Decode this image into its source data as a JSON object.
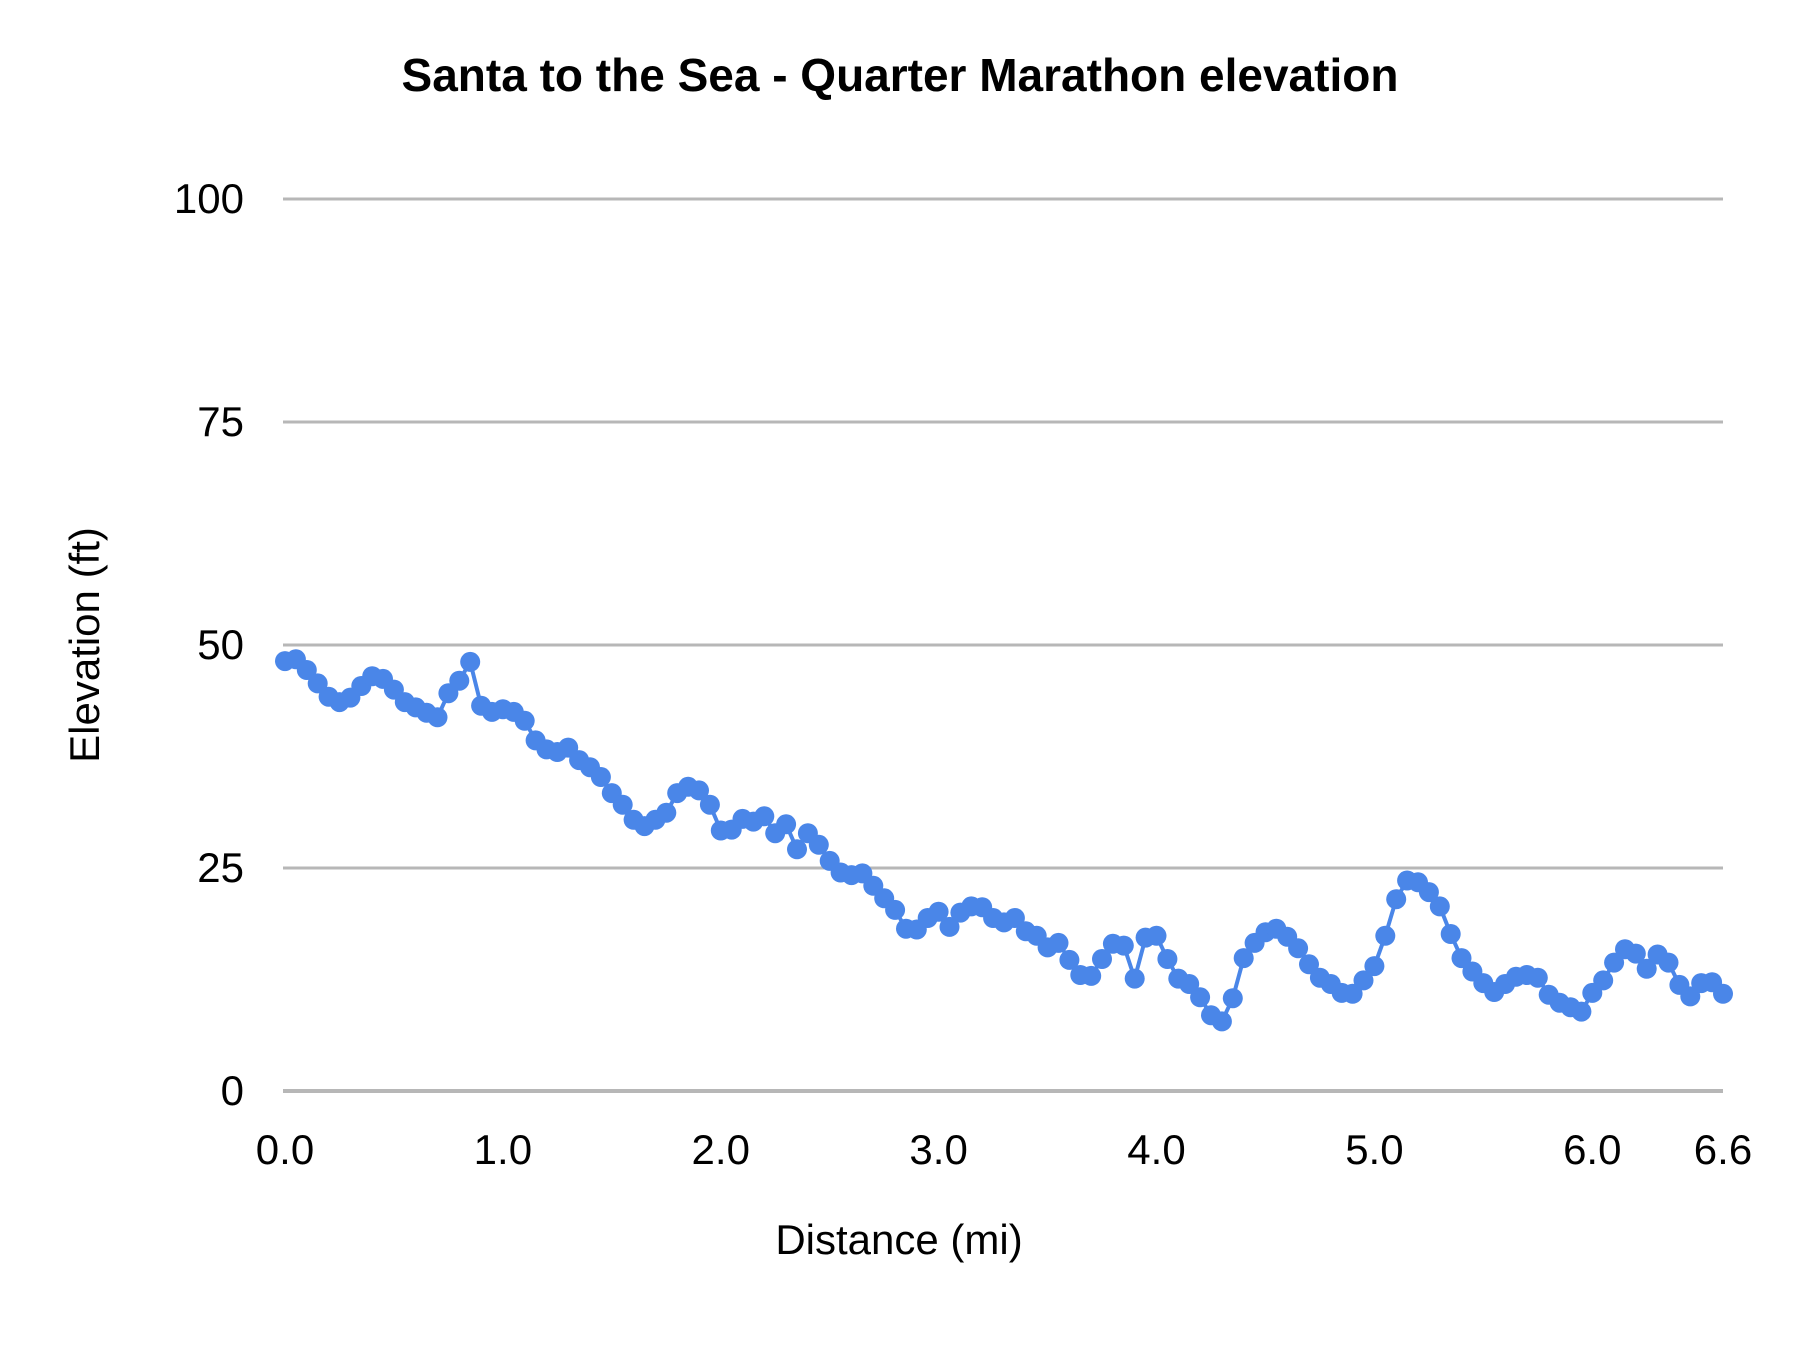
{
  "chart_data": {
    "type": "scatter",
    "title": "Santa to the Sea - Quarter Marathon elevation",
    "xlabel": "Distance (mi)",
    "ylabel": "Elevation (ft)",
    "xlim": [
      0,
      6.6
    ],
    "ylim": [
      0,
      100
    ],
    "grid": "horizontal",
    "legend": "none",
    "point_color": "#4a86e8",
    "gridline_color": "#b7b7b7",
    "xticks": [
      {
        "value": 0.0,
        "label": "0.0"
      },
      {
        "value": 1.0,
        "label": "1.0"
      },
      {
        "value": 2.0,
        "label": "2.0"
      },
      {
        "value": 3.0,
        "label": "3.0"
      },
      {
        "value": 4.0,
        "label": "4.0"
      },
      {
        "value": 5.0,
        "label": "5.0"
      },
      {
        "value": 6.0,
        "label": "6.0"
      },
      {
        "value": 6.6,
        "label": "6.6"
      }
    ],
    "yticks": [
      {
        "value": 0,
        "label": "0"
      },
      {
        "value": 25,
        "label": "25"
      },
      {
        "value": 50,
        "label": "50"
      },
      {
        "value": 75,
        "label": "75"
      },
      {
        "value": 100,
        "label": "100"
      }
    ],
    "series": [
      {
        "name": "elevation",
        "points": [
          [
            0.0,
            48.2
          ],
          [
            0.05,
            48.4
          ],
          [
            0.1,
            47.2
          ],
          [
            0.15,
            45.7
          ],
          [
            0.2,
            44.2
          ],
          [
            0.25,
            43.6
          ],
          [
            0.3,
            44.1
          ],
          [
            0.35,
            45.4
          ],
          [
            0.4,
            46.5
          ],
          [
            0.45,
            46.2
          ],
          [
            0.5,
            45.0
          ],
          [
            0.55,
            43.6
          ],
          [
            0.6,
            43.0
          ],
          [
            0.65,
            42.4
          ],
          [
            0.7,
            41.9
          ],
          [
            0.75,
            44.6
          ],
          [
            0.8,
            46.0
          ],
          [
            0.85,
            48.1
          ],
          [
            0.9,
            43.2
          ],
          [
            0.95,
            42.5
          ],
          [
            1.0,
            42.8
          ],
          [
            1.05,
            42.5
          ],
          [
            1.1,
            41.5
          ],
          [
            1.15,
            39.3
          ],
          [
            1.2,
            38.3
          ],
          [
            1.25,
            38.0
          ],
          [
            1.3,
            38.5
          ],
          [
            1.35,
            37.1
          ],
          [
            1.4,
            36.3
          ],
          [
            1.45,
            35.2
          ],
          [
            1.5,
            33.4
          ],
          [
            1.55,
            32.1
          ],
          [
            1.6,
            30.4
          ],
          [
            1.65,
            29.7
          ],
          [
            1.7,
            30.4
          ],
          [
            1.75,
            31.2
          ],
          [
            1.8,
            33.4
          ],
          [
            1.85,
            34.1
          ],
          [
            1.9,
            33.7
          ],
          [
            1.95,
            32.1
          ],
          [
            2.0,
            29.2
          ],
          [
            2.05,
            29.3
          ],
          [
            2.1,
            30.5
          ],
          [
            2.15,
            30.2
          ],
          [
            2.2,
            30.8
          ],
          [
            2.25,
            28.9
          ],
          [
            2.3,
            29.9
          ],
          [
            2.35,
            27.1
          ],
          [
            2.4,
            28.9
          ],
          [
            2.45,
            27.6
          ],
          [
            2.5,
            25.8
          ],
          [
            2.55,
            24.5
          ],
          [
            2.6,
            24.2
          ],
          [
            2.65,
            24.4
          ],
          [
            2.7,
            23.0
          ],
          [
            2.75,
            21.6
          ],
          [
            2.8,
            20.3
          ],
          [
            2.85,
            18.2
          ],
          [
            2.9,
            18.1
          ],
          [
            2.95,
            19.4
          ],
          [
            3.0,
            20.1
          ],
          [
            3.05,
            18.4
          ],
          [
            3.1,
            20.0
          ],
          [
            3.15,
            20.7
          ],
          [
            3.2,
            20.6
          ],
          [
            3.25,
            19.4
          ],
          [
            3.3,
            18.9
          ],
          [
            3.35,
            19.4
          ],
          [
            3.4,
            17.9
          ],
          [
            3.45,
            17.4
          ],
          [
            3.5,
            16.1
          ],
          [
            3.55,
            16.6
          ],
          [
            3.6,
            14.7
          ],
          [
            3.65,
            13.0
          ],
          [
            3.7,
            12.9
          ],
          [
            3.75,
            14.8
          ],
          [
            3.8,
            16.5
          ],
          [
            3.85,
            16.3
          ],
          [
            3.9,
            12.6
          ],
          [
            3.95,
            17.2
          ],
          [
            4.0,
            17.4
          ],
          [
            4.05,
            14.8
          ],
          [
            4.1,
            12.6
          ],
          [
            4.15,
            12.0
          ],
          [
            4.2,
            10.5
          ],
          [
            4.25,
            8.5
          ],
          [
            4.3,
            7.8
          ],
          [
            4.35,
            10.4
          ],
          [
            4.4,
            14.9
          ],
          [
            4.45,
            16.6
          ],
          [
            4.5,
            17.8
          ],
          [
            4.55,
            18.2
          ],
          [
            4.6,
            17.3
          ],
          [
            4.65,
            16.0
          ],
          [
            4.7,
            14.2
          ],
          [
            4.75,
            12.7
          ],
          [
            4.8,
            12.0
          ],
          [
            4.85,
            11.0
          ],
          [
            4.9,
            10.9
          ],
          [
            4.95,
            12.4
          ],
          [
            5.0,
            14.0
          ],
          [
            5.05,
            17.4
          ],
          [
            5.1,
            21.5
          ],
          [
            5.15,
            23.6
          ],
          [
            5.2,
            23.4
          ],
          [
            5.25,
            22.3
          ],
          [
            5.3,
            20.7
          ],
          [
            5.35,
            17.6
          ],
          [
            5.4,
            14.9
          ],
          [
            5.45,
            13.4
          ],
          [
            5.5,
            12.1
          ],
          [
            5.55,
            11.1
          ],
          [
            5.6,
            12.0
          ],
          [
            5.65,
            12.8
          ],
          [
            5.7,
            13.0
          ],
          [
            5.75,
            12.7
          ],
          [
            5.8,
            10.8
          ],
          [
            5.85,
            9.9
          ],
          [
            5.9,
            9.4
          ],
          [
            5.95,
            8.9
          ],
          [
            6.0,
            11.0
          ],
          [
            6.05,
            12.4
          ],
          [
            6.1,
            14.4
          ],
          [
            6.15,
            15.9
          ],
          [
            6.2,
            15.4
          ],
          [
            6.25,
            13.7
          ],
          [
            6.3,
            15.3
          ],
          [
            6.35,
            14.4
          ],
          [
            6.4,
            11.9
          ],
          [
            6.45,
            10.6
          ],
          [
            6.5,
            12.1
          ],
          [
            6.55,
            12.2
          ],
          [
            6.6,
            10.9
          ]
        ]
      }
    ]
  }
}
